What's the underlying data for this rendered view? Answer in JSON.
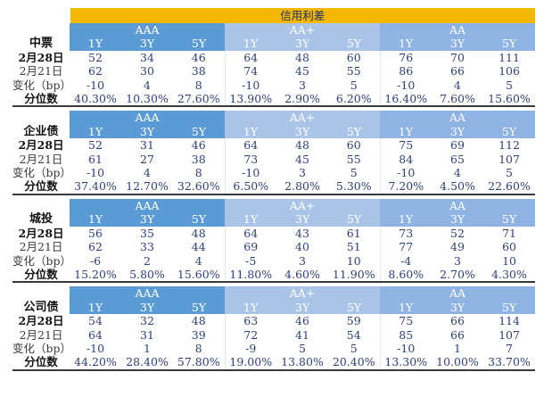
{
  "title": "信用利差",
  "grades": [
    "AAA",
    "AA+",
    "AA"
  ],
  "tenors": [
    "1Y",
    "3Y",
    "5Y",
    "1Y",
    "3Y",
    "5Y",
    "1Y",
    "3Y",
    "5Y"
  ],
  "sections": [
    {
      "name": "中票",
      "rows": [
        {
          "label": "2月28日",
          "values": [
            "52",
            "34",
            "46",
            "64",
            "48",
            "60",
            "76",
            "70",
            "111"
          ]
        },
        {
          "label": "2月21日",
          "values": [
            "62",
            "30",
            "38",
            "74",
            "45",
            "55",
            "86",
            "66",
            "106"
          ]
        },
        {
          "label": "变化（bp）",
          "values": [
            "-10",
            "4",
            "8",
            "-10",
            "3",
            "5",
            "-10",
            "4",
            "5"
          ]
        },
        {
          "label": "分位数",
          "values": [
            "40.30%",
            "10.30%",
            "27.60%",
            "13.90%",
            "2.90%",
            "6.20%",
            "16.40%",
            "7.60%",
            "15.60%"
          ]
        }
      ]
    },
    {
      "name": "企业债",
      "rows": [
        {
          "label": "2月28日",
          "values": [
            "52",
            "31",
            "46",
            "64",
            "48",
            "60",
            "75",
            "69",
            "112"
          ]
        },
        {
          "label": "2月21日",
          "values": [
            "61",
            "27",
            "38",
            "73",
            "45",
            "55",
            "84",
            "65",
            "107"
          ]
        },
        {
          "label": "变化（bp）",
          "values": [
            "-10",
            "4",
            "8",
            "-10",
            "3",
            "5",
            "-10",
            "4",
            "5"
          ]
        },
        {
          "label": "分位数",
          "values": [
            "37.40%",
            "12.70%",
            "32.60%",
            "6.50%",
            "2.80%",
            "5.30%",
            "7.20%",
            "4.50%",
            "22.60%"
          ]
        }
      ]
    },
    {
      "name": "城投",
      "rows": [
        {
          "label": "2月28日",
          "values": [
            "56",
            "35",
            "48",
            "64",
            "43",
            "61",
            "73",
            "52",
            "71"
          ]
        },
        {
          "label": "2月21日",
          "values": [
            "62",
            "33",
            "44",
            "69",
            "40",
            "51",
            "77",
            "49",
            "60"
          ]
        },
        {
          "label": "变化（bp）",
          "values": [
            "-6",
            "2",
            "4",
            "-5",
            "3",
            "10",
            "-4",
            "3",
            "10"
          ]
        },
        {
          "label": "分位数",
          "values": [
            "15.20%",
            "5.80%",
            "15.60%",
            "11.80%",
            "4.60%",
            "11.90%",
            "8.60%",
            "2.70%",
            "4.30%"
          ]
        }
      ]
    },
    {
      "name": "公司债",
      "rows": [
        {
          "label": "2月28日",
          "values": [
            "54",
            "32",
            "48",
            "63",
            "46",
            "59",
            "75",
            "66",
            "114"
          ]
        },
        {
          "label": "2月21日",
          "values": [
            "64",
            "31",
            "39",
            "72",
            "41",
            "54",
            "85",
            "66",
            "107"
          ]
        },
        {
          "label": "变化（bp）",
          "values": [
            "-10",
            "1",
            "8",
            "-9",
            "5",
            "5",
            "-10",
            "1",
            "7"
          ]
        },
        {
          "label": "分位数",
          "values": [
            "44.20%",
            "28.40%",
            "57.80%",
            "19.00%",
            "13.80%",
            "20.40%",
            "13.30%",
            "10.00%",
            "33.70%"
          ]
        }
      ]
    }
  ]
}
